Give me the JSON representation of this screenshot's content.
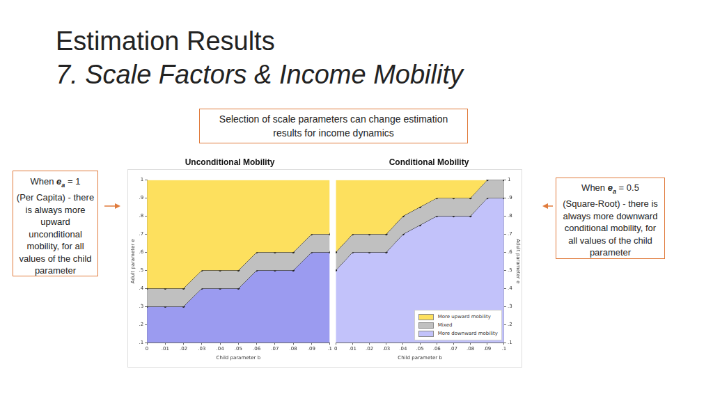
{
  "slide": {
    "title": "Estimation Results",
    "subtitle": "7. Scale Factors & Income Mobility",
    "header_box": "Selection of scale parameters can change estimation results for income dynamics",
    "left_note": {
      "prefix": "When ",
      "symbol": "e",
      "subscript": "a",
      "equals": " = 1",
      "text": "(Per Capita) - there is always more upward unconditional mobility, for all values of the child parameter"
    },
    "right_note": {
      "prefix": "When ",
      "symbol": "e",
      "subscript": "a",
      "equals": " = 0.5",
      "text": "(Square-Root) - there is always more downward conditional mobility, for all values of the child parameter"
    }
  },
  "chart_data": [
    {
      "type": "area",
      "title": "Unconditional Mobility",
      "x_label": "Child parameter b",
      "y_label": "Adult parameter e",
      "x": [
        0,
        0.01,
        0.02,
        0.03,
        0.04,
        0.05,
        0.06,
        0.07,
        0.08,
        0.09,
        0.1
      ],
      "series": [
        {
          "name": "More downward mobility",
          "color": "#9b9bf0",
          "marker": "circle",
          "line_style": "solid",
          "values": [
            0.3,
            0.3,
            0.3,
            0.4,
            0.4,
            0.4,
            0.5,
            0.5,
            0.5,
            0.6,
            0.6
          ]
        },
        {
          "name": "Mixed",
          "color": "#c0c0c0",
          "marker": "circle",
          "line_style": "solid",
          "values": [
            0.4,
            0.4,
            0.4,
            0.5,
            0.5,
            0.5,
            0.6,
            0.6,
            0.6,
            0.7,
            0.7
          ]
        },
        {
          "name": "More upward mobility",
          "color": "#fde05e",
          "marker": "none",
          "line_style": "none",
          "values": [
            1,
            1,
            1,
            1,
            1,
            1,
            1,
            1,
            1,
            1,
            1
          ]
        }
      ],
      "xlim": [
        0,
        0.1
      ],
      "ylim": [
        0.1,
        1
      ],
      "xticks": [
        0,
        {
          "value": 0.01,
          "label": ".01"
        },
        {
          "value": 0.02,
          "label": ".02"
        },
        {
          "value": 0.03,
          "label": ".03"
        },
        {
          "value": 0.04,
          "label": ".04"
        },
        {
          "value": 0.05,
          "label": ".05"
        },
        {
          "value": 0.06,
          "label": ".06"
        },
        {
          "value": 0.07,
          "label": ".07"
        },
        {
          "value": 0.08,
          "label": ".08"
        },
        {
          "value": 0.09,
          "label": ".09"
        },
        {
          "value": 0.1,
          "label": ".1"
        }
      ],
      "yticks": [
        {
          "value": 0.1,
          "label": ".1"
        },
        {
          "value": 0.2,
          "label": ".2"
        },
        {
          "value": 0.3,
          "label": ".3"
        },
        {
          "value": 0.4,
          "label": ".4"
        },
        {
          "value": 0.5,
          "label": ".5"
        },
        {
          "value": 0.6,
          "label": ".6"
        },
        {
          "value": 0.7,
          "label": ".7"
        },
        {
          "value": 0.8,
          "label": ".8"
        },
        {
          "value": 0.9,
          "label": ".9"
        },
        1
      ],
      "grid": false
    },
    {
      "type": "area",
      "title": "Conditional Mobility",
      "x_label": "Child parameter b",
      "y_label": "Adult parameter e",
      "x": [
        0,
        0.01,
        0.02,
        0.03,
        0.04,
        0.05,
        0.06,
        0.07,
        0.08,
        0.09,
        0.1
      ],
      "series": [
        {
          "name": "More downward mobility",
          "color": "#c2c2fa",
          "marker": "circle",
          "line_style": "solid",
          "values": [
            0.5,
            0.6,
            0.6,
            0.6,
            0.7,
            0.75,
            0.8,
            0.8,
            0.8,
            0.9,
            0.9
          ]
        },
        {
          "name": "Mixed",
          "color": "#c0c0c0",
          "marker": "circle",
          "line_style": "solid",
          "values": [
            0.6,
            0.7,
            0.7,
            0.7,
            0.8,
            0.85,
            0.9,
            0.9,
            0.9,
            1,
            1
          ]
        },
        {
          "name": "More upward mobility",
          "color": "#fde05e",
          "marker": "none",
          "line_style": "none",
          "values": [
            1,
            1,
            1,
            1,
            1,
            1,
            1,
            1,
            1,
            1,
            1
          ]
        }
      ],
      "xlim": [
        0,
        0.1
      ],
      "ylim": [
        0.1,
        1
      ],
      "xticks": [
        0,
        {
          "value": 0.01,
          "label": ".01"
        },
        {
          "value": 0.02,
          "label": ".02"
        },
        {
          "value": 0.03,
          "label": ".03"
        },
        {
          "value": 0.04,
          "label": ".04"
        },
        {
          "value": 0.05,
          "label": ".05"
        },
        {
          "value": 0.06,
          "label": ".06"
        },
        {
          "value": 0.07,
          "label": ".07"
        },
        {
          "value": 0.08,
          "label": ".08"
        },
        {
          "value": 0.09,
          "label": ".09"
        },
        {
          "value": 0.1,
          "label": ".1"
        }
      ],
      "yticks": [
        {
          "value": 0.1,
          "label": ".1"
        },
        {
          "value": 0.2,
          "label": ".2"
        },
        {
          "value": 0.3,
          "label": ".3"
        },
        {
          "value": 0.4,
          "label": ".4"
        },
        {
          "value": 0.5,
          "label": ".5"
        },
        {
          "value": 0.6,
          "label": ".6"
        },
        {
          "value": 0.7,
          "label": ".7"
        },
        {
          "value": 0.8,
          "label": ".8"
        },
        {
          "value": 0.9,
          "label": ".9"
        },
        1
      ],
      "grid": false,
      "legend": "lower right"
    }
  ]
}
